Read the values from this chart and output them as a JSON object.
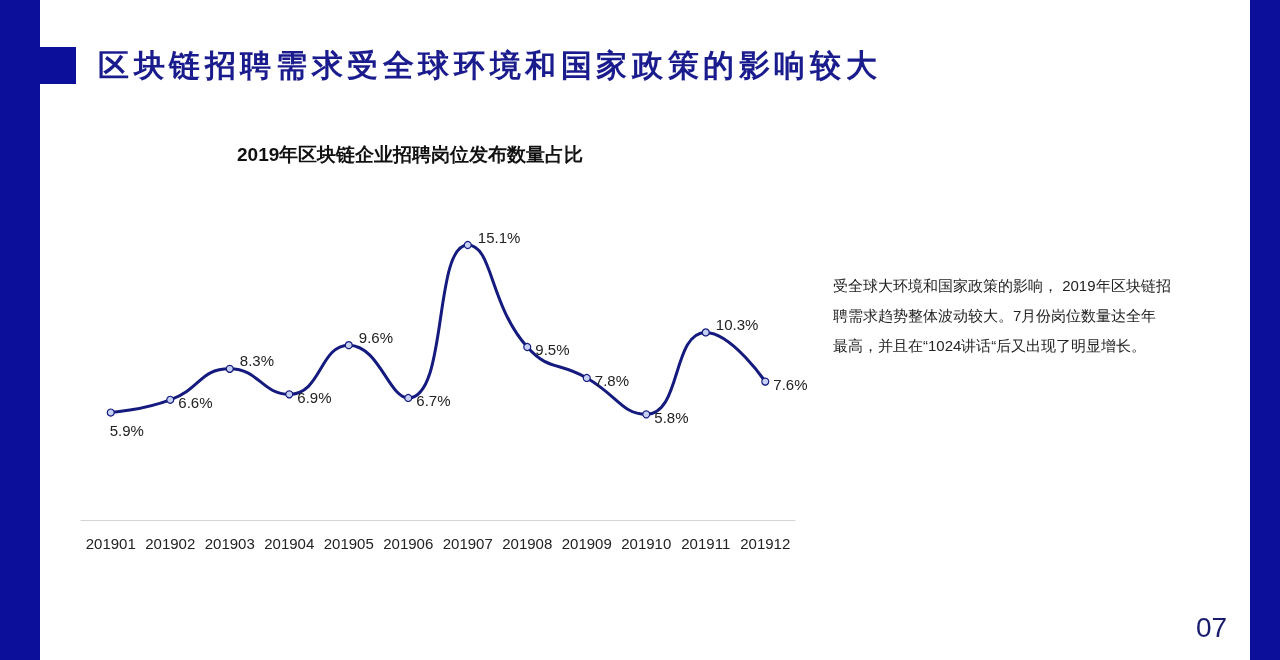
{
  "chart_data": {
    "type": "line",
    "title": "区块链招聘需求受全球环境和国家政策的影响较大",
    "subtitle": "2019年区块链企业招聘岗位发布数量占比",
    "categories": [
      "201901",
      "201902",
      "201903",
      "201904",
      "201905",
      "201906",
      "201907",
      "201908",
      "201909",
      "201910",
      "201911",
      "201912"
    ],
    "values": [
      5.9,
      6.6,
      8.3,
      6.9,
      9.6,
      6.7,
      15.1,
      9.5,
      7.8,
      5.8,
      10.3,
      7.6
    ],
    "value_labels": [
      "5.9%",
      "6.6%",
      "8.3%",
      "6.9%",
      "9.6%",
      "6.7%",
      "15.1%",
      "9.5%",
      "7.8%",
      "5.8%",
      "10.3%",
      "7.6%"
    ],
    "color": "#141a7e",
    "marker": "circle",
    "line_style": "solid",
    "annotations": [
      "受全球大环境和国家政策的影响， 2019年区块链招聘需求趋势整体波动较大。7月份岗位数量达全年最高，并且在“1024讲话“后又出现了明显增长。",
      "07"
    ]
  }
}
